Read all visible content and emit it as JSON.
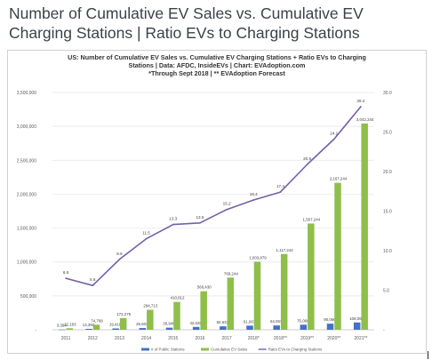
{
  "page": {
    "title_line1": "Number of Cumulative EV Sales vs. Cumulative EV",
    "title_line2": "Charging Stations | Ratio EVs to Charging Stations"
  },
  "chart_data": {
    "type": "bar",
    "title_lines": [
      "US: Number of Cumulative EV Sales vs. Cumulative EV Charging Stations + Ratio EVs to Charging",
      "Stations | Data: AFDC, InsideEVs | Chart: EVAdoption.com",
      "*Through Sept 2018 | ** EVAdoption Forecast"
    ],
    "categories": [
      "2011",
      "2012",
      "2013",
      "2014",
      "2015",
      "2016",
      "2017",
      "2018*",
      "2018**",
      "2019**",
      "2020**",
      "2021**"
    ],
    "series": [
      {
        "name": "# of Public Stations",
        "axis": "left",
        "kind": "bar",
        "color": "#4472c4",
        "values": [
          3394,
          13392,
          19410,
          25602,
          30945,
          42028,
          50633,
          61067,
          64067,
          75066,
          90066,
          108066
        ],
        "labels": [
          "3,394",
          "13,392",
          "19,410",
          "25,602",
          "30,945",
          "42,028",
          "50,633",
          "61,067",
          "64,067",
          "75,066",
          "90,066",
          "108,066"
        ]
      },
      {
        "name": "Cumulative EV Sales",
        "axis": "left",
        "kind": "bar",
        "color": "#8fbe4b",
        "values": [
          22183,
          74768,
          172275,
          294713,
          410812,
          568430,
          769244,
          1003879,
          1117244,
          1567244,
          2167244,
          3042244
        ],
        "labels": [
          "22,183",
          "74,768",
          "172,275",
          "294,713",
          "410,812",
          "568,430",
          "769,244",
          "1,003,879",
          "1,117,244",
          "1,567,244",
          "2,167,244",
          "3,042,244"
        ]
      },
      {
        "name": "Ratio EVs to Charging Stations",
        "axis": "right",
        "kind": "line",
        "color": "#7460a8",
        "values": [
          6.5,
          5.6,
          8.9,
          11.5,
          13.3,
          13.5,
          15.2,
          16.4,
          17.4,
          20.9,
          24.1,
          28.2
        ],
        "labels": [
          "6.5",
          "5.6",
          "8.9",
          "11.5",
          "13.3",
          "13.5",
          "15.2",
          "16.4",
          "17.4",
          "20.9",
          "24.1",
          "28.2"
        ]
      }
    ],
    "y_left": {
      "min": 0,
      "max": 3500000,
      "ticks": [
        "-",
        "500,000",
        "1,000,000",
        "1,500,000",
        "2,000,000",
        "2,500,000",
        "3,000,000",
        "3,500,000"
      ]
    },
    "y_right": {
      "min": 0,
      "max": 30,
      "ticks": [
        "-",
        "5.0",
        "10.0",
        "15.0",
        "20.0",
        "25.0",
        "30.0"
      ]
    },
    "grid": true,
    "legend_position": "bottom"
  }
}
